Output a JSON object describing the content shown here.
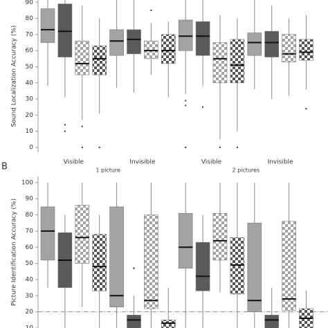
{
  "chart_data": [
    {
      "type": "box",
      "y_label": "Sound Localization Accuracy (%)",
      "ylim": [
        -3,
        91.4
      ],
      "yticks": [
        0,
        10,
        20,
        30,
        40,
        50,
        60,
        70,
        80,
        90
      ],
      "box_styles": [
        {
          "color": "#a3a3a3",
          "pattern": "solid"
        },
        {
          "color": "#5a5a5a",
          "pattern": "solid"
        },
        {
          "color": "#a3a3a3",
          "pattern": "checker"
        },
        {
          "color": "#555555",
          "pattern": "checker"
        }
      ],
      "groups": [
        {
          "label": "1 picture",
          "subgroups": [
            "Visible",
            "Invisible"
          ]
        },
        {
          "label": "2 pictures",
          "subgroups": [
            "Visible",
            "Invisible"
          ]
        }
      ],
      "boxes": [
        {
          "whisker_low": 38,
          "q1": 65,
          "median": 73,
          "q3": 86,
          "whisker_high": 92,
          "outliers": []
        },
        {
          "whisker_low": 31,
          "q1": 56,
          "median": 72,
          "q3": 89,
          "whisker_high": 92,
          "outliers": [
            14,
            10
          ]
        },
        {
          "whisker_low": 17,
          "q1": 45,
          "median": 52,
          "q3": 66,
          "whisker_high": 88,
          "outliers": [
            13,
            0
          ]
        },
        {
          "whisker_low": 21,
          "q1": 45,
          "median": 55,
          "q3": 63,
          "whisker_high": 80,
          "outliers": [
            0
          ]
        },
        {
          "whisker_low": 37,
          "q1": 57,
          "median": 66,
          "q3": 73,
          "whisker_high": 92,
          "outliers": []
        },
        {
          "whisker_low": 34,
          "q1": 58,
          "median": 67,
          "q3": 73,
          "whisker_high": 92,
          "outliers": []
        },
        {
          "whisker_low": 45,
          "q1": 55,
          "median": 60,
          "q3": 66,
          "whisker_high": 77,
          "outliers": [
            85
          ]
        },
        {
          "whisker_low": 31,
          "q1": 52,
          "median": 60,
          "q3": 70,
          "whisker_high": 78,
          "outliers": []
        },
        {
          "whisker_low": 33,
          "q1": 60,
          "median": 69,
          "q3": 79,
          "whisker_high": 92,
          "outliers": [
            29,
            26,
            0
          ]
        },
        {
          "whisker_low": 38,
          "q1": 57,
          "median": 69,
          "q3": 78,
          "whisker_high": 92,
          "outliers": [
            25
          ]
        },
        {
          "whisker_low": 5,
          "q1": 40,
          "median": 55,
          "q3": 65,
          "whisker_high": 82,
          "outliers": [
            0
          ]
        },
        {
          "whisker_low": 10,
          "q1": 40,
          "median": 51,
          "q3": 67,
          "whisker_high": 80,
          "outliers": [
            0
          ]
        },
        {
          "whisker_low": 36,
          "q1": 57,
          "median": 65,
          "q3": 71,
          "whisker_high": 92,
          "outliers": []
        },
        {
          "whisker_low": 30,
          "q1": 56,
          "median": 65,
          "q3": 72,
          "whisker_high": 88,
          "outliers": []
        },
        {
          "whisker_low": 32,
          "q1": 53,
          "median": 58,
          "q3": 70,
          "whisker_high": 80,
          "outliers": []
        },
        {
          "whisker_low": 36,
          "q1": 54,
          "median": 59,
          "q3": 67,
          "whisker_high": 82,
          "outliers": [
            24
          ]
        }
      ]
    },
    {
      "type": "box",
      "panel_label": "B",
      "y_label": "Picture Identification Accuracy (%)",
      "ylim": [
        10,
        103.8
      ],
      "yticks": [
        10,
        20,
        30,
        40,
        50,
        60,
        70,
        80,
        90,
        100
      ],
      "reference_line": 20,
      "box_styles": [
        {
          "color": "#a3a3a3",
          "pattern": "solid"
        },
        {
          "color": "#5a5a5a",
          "pattern": "solid"
        },
        {
          "color": "#a3a3a3",
          "pattern": "checker"
        },
        {
          "color": "#555555",
          "pattern": "checker"
        }
      ],
      "boxes": [
        {
          "whisker_low": 35,
          "q1": 52,
          "median": 70,
          "q3": 85,
          "whisker_high": 100,
          "outliers": []
        },
        {
          "whisker_low": 10,
          "q1": 35,
          "median": 52,
          "q3": 69,
          "whisker_high": 80,
          "outliers": []
        },
        {
          "whisker_low": 23,
          "q1": 50,
          "median": 66,
          "q3": 86,
          "whisker_high": 100,
          "outliers": []
        },
        {
          "whisker_low": 10,
          "q1": 33,
          "median": 48,
          "q3": 68,
          "whisker_high": 80,
          "outliers": []
        },
        {
          "whisker_low": 10,
          "q1": 23,
          "median": 30,
          "q3": 85,
          "whisker_high": 100,
          "outliers": []
        },
        {
          "whisker_low": 10,
          "q1": 10,
          "median": 15,
          "q3": 18,
          "whisker_high": 30,
          "outliers": [
            47
          ]
        },
        {
          "whisker_low": 10,
          "q1": 22,
          "median": 27,
          "q3": 80,
          "whisker_high": 100,
          "outliers": []
        },
        {
          "whisker_low": 10,
          "q1": 10,
          "median": 13,
          "q3": 15,
          "whisker_high": 35,
          "outliers": []
        },
        {
          "whisker_low": 10,
          "q1": 47,
          "median": 60,
          "q3": 81,
          "whisker_high": 100,
          "outliers": []
        },
        {
          "whisker_low": 10,
          "q1": 33,
          "median": 42,
          "q3": 63,
          "whisker_high": 80,
          "outliers": []
        },
        {
          "whisker_low": 32,
          "q1": 52,
          "median": 64,
          "q3": 81,
          "whisker_high": 100,
          "outliers": []
        },
        {
          "whisker_low": 10,
          "q1": 31,
          "median": 49,
          "q3": 66,
          "whisker_high": 100,
          "outliers": []
        },
        {
          "whisker_low": 10,
          "q1": 20,
          "median": 27,
          "q3": 75,
          "whisker_high": 100,
          "outliers": []
        },
        {
          "whisker_low": 10,
          "q1": 10,
          "median": 15,
          "q3": 18,
          "whisker_high": 35,
          "outliers": []
        },
        {
          "whisker_low": 10,
          "q1": 21,
          "median": 28,
          "q3": 76,
          "whisker_high": 100,
          "outliers": []
        },
        {
          "whisker_low": 10,
          "q1": 10,
          "median": 16,
          "q3": 22,
          "whisker_high": 33,
          "outliers": []
        }
      ]
    }
  ]
}
